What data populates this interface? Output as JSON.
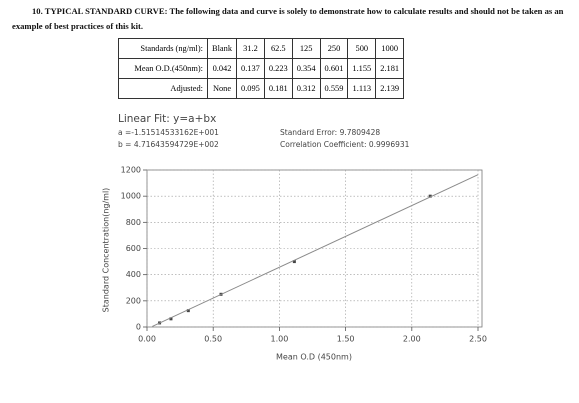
{
  "heading": {
    "label": "10. TYPICAL STANDARD CURVE:",
    "text": "The following data and curve is solely to demonstrate how to calculate results and should not be taken as an example of best practices of this kit."
  },
  "table": {
    "rows": [
      [
        "Standards (ng/ml):",
        "Blank",
        "31.2",
        "62.5",
        "125",
        "250",
        "500",
        "1000"
      ],
      [
        "Mean O.D.(450nm):",
        "0.042",
        "0.137",
        "0.223",
        "0.354",
        "0.601",
        "1.155",
        "2.181"
      ],
      [
        "Adjusted:",
        "None",
        "0.095",
        "0.181",
        "0.312",
        "0.559",
        "1.113",
        "2.139"
      ]
    ]
  },
  "chart_data": {
    "type": "scatter",
    "title": "Linear Fit: y=a+bx",
    "annotations": [
      "a =-1.51514533162E+001",
      "b = 4.71643594729E+002",
      "Standard Error: 9.7809428",
      "Correlation Coefficient: 0.9996931"
    ],
    "x_label": "Mean O.D (450nm)",
    "y_label": "Standard Concentration(ng/ml)",
    "series": [
      {
        "type": "scatter",
        "color": "#444444",
        "x": [
          0.095,
          0.181,
          0.312,
          0.559,
          1.113,
          2.139
        ],
        "values": [
          31.2,
          62.5,
          125,
          250,
          500,
          1000
        ]
      },
      {
        "type": "line",
        "color": "#8a8a8a",
        "x": [
          0.04,
          2.5
        ],
        "values": [
          4,
          1164
        ]
      }
    ],
    "xlim": [
      0,
      2.5
    ],
    "xticks": [
      {
        "value": 0,
        "label": "0.00"
      },
      {
        "value": 0.5,
        "label": "0.50"
      },
      {
        "value": 1,
        "label": "1.00"
      },
      {
        "value": 1.5,
        "label": "1.50"
      },
      {
        "value": 2,
        "label": "2.00"
      },
      {
        "value": 2.5,
        "label": "2.50"
      }
    ],
    "ylim": [
      0,
      1200
    ],
    "yticks": [
      0,
      200,
      400,
      600,
      800,
      1000,
      1200
    ],
    "grid": true
  }
}
